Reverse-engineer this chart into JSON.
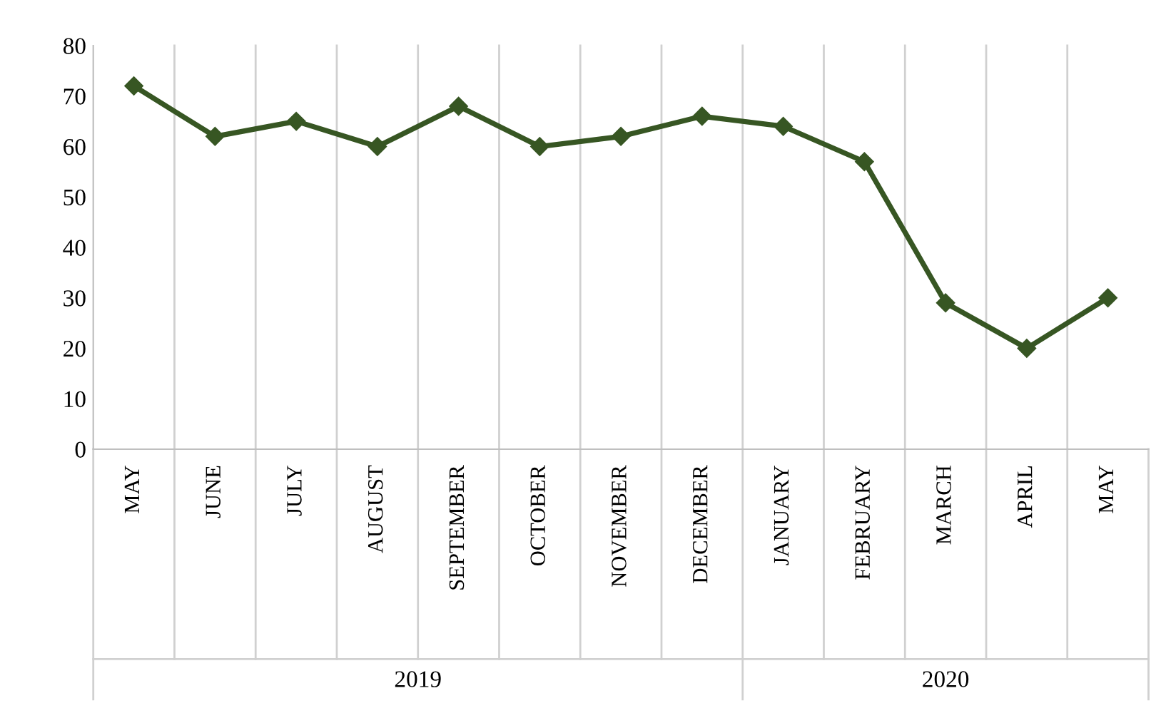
{
  "chart_data": {
    "type": "line",
    "categories": [
      "MAY",
      "JUNE",
      "JULY",
      "AUGUST",
      "SEPTEMBER",
      "OCTOBER",
      "NOVEMBER",
      "DECEMBER",
      "JANUARY",
      "FEBRUARY",
      "MARCH",
      "APRIL",
      "MAY"
    ],
    "series": [
      {
        "color": "#375623",
        "values": [
          72,
          62,
          65,
          60,
          68,
          60,
          62,
          66,
          64,
          57,
          29,
          20,
          30
        ]
      }
    ],
    "ylim": [
      0,
      80
    ],
    "yticks": [
      0,
      10,
      20,
      30,
      40,
      50,
      60,
      70,
      80
    ],
    "grid": "x",
    "marker": "diamond",
    "line_style": "solid",
    "annotations": [
      "2019",
      "2020"
    ]
  }
}
